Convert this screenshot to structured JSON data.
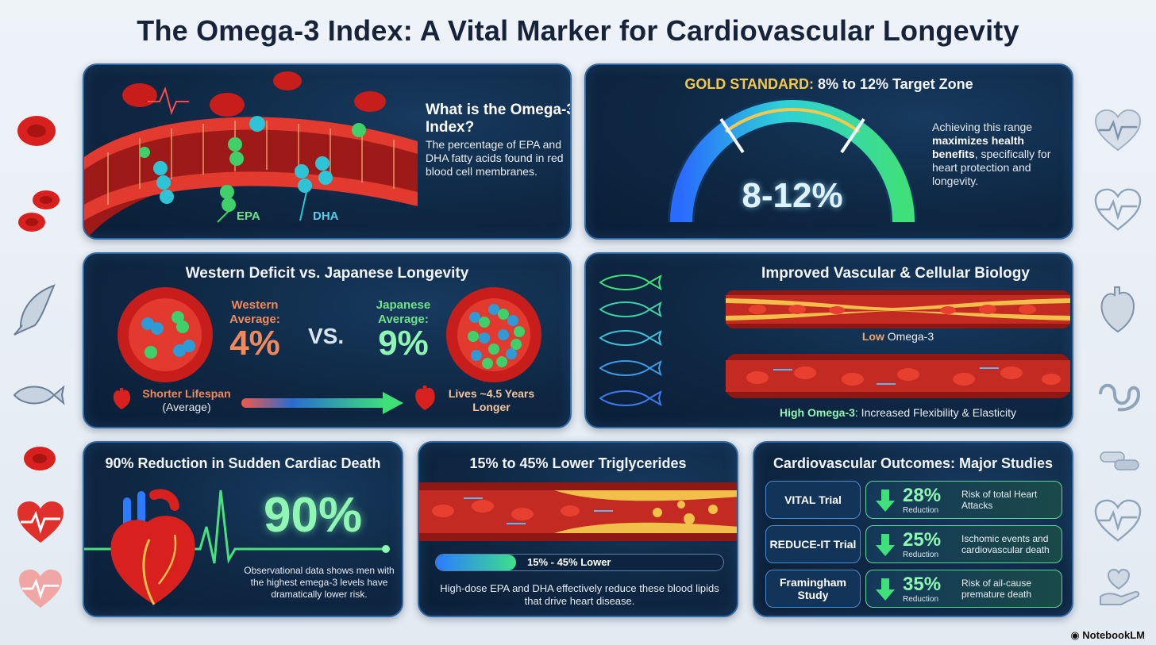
{
  "title": "The Omega-3 Index: A Vital Marker for Cardiovascular Longevity",
  "definition": {
    "heading": "What is the Omega-3 Index?",
    "body": "The percentage of EPA and DHA fatty acids found in red blood cell membranes.",
    "label_epa": "EPA",
    "label_dhas": "DHA"
  },
  "gold_standard": {
    "title_prefix": "GOLD STANDARD:",
    "title_rest": " 8% to 12% Target Zone",
    "gauge_value": "8-12%",
    "desc_1": "Achieving this range ",
    "desc_bold": "maximizes health benefits",
    "desc_2": ", specifically for heart protection and longevity."
  },
  "deficit": {
    "title": "Western Deficit vs. Japanese Longevity",
    "western_label": "Western Average:",
    "western_value": "4%",
    "vs": "VS.",
    "japanese_label": "Japanese Average:",
    "japanese_value": "9%",
    "left_caption_1": "Shorter Lifespan",
    "left_caption_2": "(Average)",
    "right_caption": "Lives ~4.5 Years Longer"
  },
  "biology": {
    "title": "Improved Vascular & Cellular Biology",
    "low_bold": "Low",
    "low_rest": " Omega-3",
    "high_bold": "High Omega-3",
    "high_rest": ": Increased Flexibility & Elasticity"
  },
  "cardiac_death": {
    "title": "90% Reduction in Sudden Cardiac Death",
    "value": "90%",
    "desc": "Observational data shows men with the highest emega-3 levels have dramatically lower risk."
  },
  "triglycerides": {
    "title": "15% to 45% Lower Triglycerides",
    "bar_label": "15% - 45% Lower",
    "bar_fraction": 0.28,
    "desc": "High-dose EPA and DHA effectively reduce these blood lipids that drive heart disease."
  },
  "studies": {
    "title": "Cardiovascular Outcomes: Major Studies",
    "rows": [
      {
        "name": "VITAL Trial",
        "pct": "28%",
        "reduction": "Reduction",
        "risk": "Risk of total Heart Attacks"
      },
      {
        "name": "REDUCE-IT Trial",
        "pct": "25%",
        "reduction": "Reduction",
        "risk": "Ischomic events and cardiovascular death"
      },
      {
        "name": "Framingham Study",
        "pct": "35%",
        "reduction": "Reduction",
        "risk": "Risk of ail-cause premature death"
      }
    ]
  },
  "brand": "NotebookLM",
  "colors": {
    "accent_green": "#8ff6b3",
    "accent_gold": "#f2c94c",
    "western_orange": "#f08a5d",
    "panel_bg": "#0e2743"
  }
}
